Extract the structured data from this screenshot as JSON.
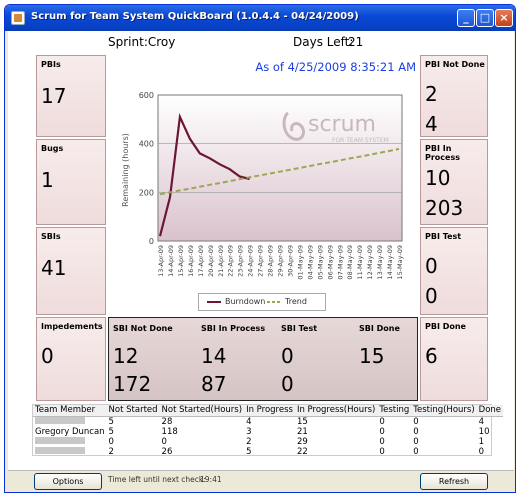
{
  "window": {
    "title": "Scrum for Team System QuickBoard (1.0.4.4 - 04/24/2009)",
    "buttons": {
      "minimize": "_",
      "maximize": "□",
      "close": "×"
    }
  },
  "sprint": {
    "sprint_label": "Sprint:Croy",
    "days_left_label": "Days Left:",
    "days_left_value": "21"
  },
  "left_panels": [
    {
      "label": "PBIs",
      "value": "17"
    },
    {
      "label": "Bugs",
      "value": "1"
    },
    {
      "label": "SBIs",
      "value": "41"
    },
    {
      "label": "Impedements",
      "value": "0"
    }
  ],
  "right_panels": [
    {
      "label": "PBI Not Done",
      "values": [
        "2",
        "4"
      ]
    },
    {
      "label": "PBI In Process",
      "values": [
        "10",
        "203"
      ]
    },
    {
      "label": "PBI Test",
      "values": [
        "0",
        "0"
      ]
    },
    {
      "label": "PBI Done",
      "values": [
        "6"
      ]
    }
  ],
  "sbi_stats": [
    {
      "label": "SBI Not Done",
      "values": [
        "12",
        "172"
      ]
    },
    {
      "label": "SBI In Process",
      "values": [
        "14",
        "87"
      ]
    },
    {
      "label": "SBI Test",
      "values": [
        "0",
        "0"
      ]
    },
    {
      "label": "SBI Done",
      "values": [
        "15"
      ]
    }
  ],
  "chart": {
    "as_of": "As of 4/25/2009 8:35:21 AM",
    "logo_text": "scrum",
    "logo_subtext": "FOR TEAM SYSTEM",
    "legend_burndown": "Burndown",
    "legend_trend": "Trend"
  },
  "chart_data": {
    "type": "line",
    "ylabel": "Remaining (hours)",
    "xlabel": "",
    "ylim": [
      0,
      600
    ],
    "yticks": [
      0,
      200,
      400,
      600
    ],
    "categories": [
      "13-Apr-09",
      "14-Apr-09",
      "15-Apr-09",
      "16-Apr-09",
      "17-Apr-09",
      "20-Apr-09",
      "21-Apr-09",
      "22-Apr-09",
      "23-Apr-09",
      "24-Apr-09",
      "27-Apr-09",
      "28-Apr-09",
      "29-Apr-09",
      "30-Apr-09",
      "01-May-09",
      "04-May-09",
      "05-May-09",
      "06-May-09",
      "07-May-09",
      "08-May-09",
      "11-May-09",
      "12-May-09",
      "13-May-09",
      "14-May-09",
      "15-May-09"
    ],
    "series": [
      {
        "name": "Burndown",
        "color": "#6b1636",
        "values": [
          20,
          180,
          510,
          420,
          360,
          340,
          315,
          295,
          265,
          255,
          null,
          null,
          null,
          null,
          null,
          null,
          null,
          null,
          null,
          null,
          null,
          null,
          null,
          null,
          null
        ]
      },
      {
        "name": "Trend",
        "color": "#9aa852",
        "values": [
          192,
          200,
          208,
          215,
          223,
          231,
          238,
          246,
          254,
          262,
          269,
          277,
          285,
          292,
          300,
          308,
          316,
          323,
          331,
          339,
          346,
          354,
          362,
          370,
          378
        ]
      }
    ],
    "grid": true,
    "legend": "bottom"
  },
  "team": {
    "headers": [
      "Team Member",
      "Not Started",
      "Not Started(Hours)",
      "In Progress",
      "In Progress(Hours)",
      "Testing",
      "Testing(Hours)",
      "Done"
    ],
    "rows": [
      {
        "name": "",
        "values": [
          "5",
          "28",
          "4",
          "15",
          "0",
          "0",
          "4"
        ]
      },
      {
        "name": "Gregory Duncan",
        "values": [
          "5",
          "118",
          "3",
          "21",
          "0",
          "0",
          "10"
        ]
      },
      {
        "name": "",
        "values": [
          "0",
          "0",
          "2",
          "29",
          "0",
          "0",
          "1"
        ]
      },
      {
        "name": "",
        "values": [
          "2",
          "26",
          "5",
          "22",
          "0",
          "0",
          "0"
        ]
      }
    ]
  },
  "status": {
    "options_label": "Options",
    "next_check_label": "Time left until next check:",
    "next_check_value": "19:41",
    "refresh_label": "Refresh"
  },
  "colors": {
    "burndown": "#6b1636",
    "trend": "#9aa852",
    "as_of": "#1a3ee0",
    "panel_bg": "#efdcdc"
  }
}
